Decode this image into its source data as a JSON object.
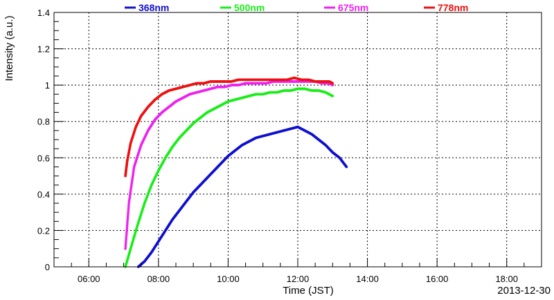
{
  "chart_data": {
    "type": "scatter",
    "title": "",
    "xlabel": "Time (JST)",
    "ylabel": "Intensity (a.u.)",
    "date_label": "2013-12-30",
    "xlim_hours": [
      5.0,
      19.0
    ],
    "ylim": [
      0,
      1.4
    ],
    "grid": true,
    "legend_position": "top",
    "x_ticks": [
      {
        "hour": 6,
        "label": "06:00"
      },
      {
        "hour": 8,
        "label": "08:00"
      },
      {
        "hour": 10,
        "label": "10:00"
      },
      {
        "hour": 12,
        "label": "12:00"
      },
      {
        "hour": 14,
        "label": "14:00"
      },
      {
        "hour": 16,
        "label": "16:00"
      },
      {
        "hour": 18,
        "label": "18:00"
      }
    ],
    "y_ticks": [
      {
        "value": 0,
        "label": "0"
      },
      {
        "value": 0.2,
        "label": "0.2"
      },
      {
        "value": 0.4,
        "label": "0.4"
      },
      {
        "value": 0.6,
        "label": "0.6"
      },
      {
        "value": 0.8,
        "label": "0.8"
      },
      {
        "value": 1.0,
        "label": "1"
      },
      {
        "value": 1.2,
        "label": "1.2"
      },
      {
        "value": 1.4,
        "label": "1.4"
      }
    ],
    "series": [
      {
        "name": "368nm",
        "color": "#1010d0",
        "x": [
          7.42,
          7.6,
          7.8,
          8.0,
          8.2,
          8.4,
          8.6,
          8.8,
          9.0,
          9.2,
          9.4,
          9.6,
          9.8,
          10.0,
          10.2,
          10.4,
          10.6,
          10.8,
          11.0,
          11.2,
          11.4,
          11.6,
          11.8,
          12.0,
          12.2,
          12.4,
          12.6,
          12.8,
          13.0,
          13.2,
          13.4
        ],
        "y": [
          0.0,
          0.03,
          0.08,
          0.14,
          0.2,
          0.26,
          0.31,
          0.36,
          0.41,
          0.45,
          0.49,
          0.53,
          0.57,
          0.61,
          0.64,
          0.67,
          0.69,
          0.71,
          0.72,
          0.73,
          0.74,
          0.75,
          0.76,
          0.77,
          0.75,
          0.73,
          0.7,
          0.67,
          0.63,
          0.6,
          0.55
        ]
      },
      {
        "name": "500nm",
        "color": "#18ee18",
        "x": [
          7.05,
          7.2,
          7.4,
          7.6,
          7.8,
          8.0,
          8.2,
          8.4,
          8.6,
          8.8,
          9.0,
          9.2,
          9.4,
          9.6,
          9.8,
          10.0,
          10.2,
          10.4,
          10.6,
          10.8,
          11.0,
          11.2,
          11.4,
          11.6,
          11.8,
          12.0,
          12.2,
          12.4,
          12.6,
          12.8,
          13.0
        ],
        "y": [
          0.0,
          0.1,
          0.23,
          0.35,
          0.45,
          0.53,
          0.6,
          0.66,
          0.71,
          0.75,
          0.79,
          0.82,
          0.85,
          0.87,
          0.89,
          0.91,
          0.92,
          0.93,
          0.94,
          0.95,
          0.95,
          0.96,
          0.96,
          0.97,
          0.97,
          0.98,
          0.98,
          0.97,
          0.97,
          0.96,
          0.94
        ]
      },
      {
        "name": "675nm",
        "color": "#ee22ee",
        "x": [
          7.05,
          7.15,
          7.3,
          7.5,
          7.7,
          7.9,
          8.1,
          8.3,
          8.5,
          8.7,
          8.9,
          9.1,
          9.3,
          9.5,
          9.7,
          9.9,
          10.1,
          10.3,
          10.5,
          10.7,
          10.9,
          11.1,
          11.3,
          11.5,
          11.7,
          11.9,
          12.1,
          12.3,
          12.5,
          12.7,
          12.9,
          13.0
        ],
        "y": [
          0.1,
          0.35,
          0.55,
          0.67,
          0.75,
          0.81,
          0.85,
          0.88,
          0.91,
          0.93,
          0.95,
          0.96,
          0.97,
          0.98,
          0.99,
          0.99,
          1.0,
          1.0,
          1.01,
          1.01,
          1.01,
          1.01,
          1.02,
          1.02,
          1.02,
          1.02,
          1.02,
          1.02,
          1.02,
          1.01,
          1.01,
          1.0
        ]
      },
      {
        "name": "778nm",
        "color": "#ee1010",
        "x": [
          7.05,
          7.1,
          7.2,
          7.35,
          7.5,
          7.7,
          7.9,
          8.1,
          8.3,
          8.5,
          8.7,
          8.9,
          9.1,
          9.3,
          9.5,
          9.7,
          9.9,
          10.1,
          10.3,
          10.5,
          10.7,
          10.9,
          11.1,
          11.3,
          11.5,
          11.7,
          11.9,
          12.1,
          12.3,
          12.5,
          12.7,
          12.9,
          13.0
        ],
        "y": [
          0.5,
          0.58,
          0.68,
          0.77,
          0.83,
          0.88,
          0.92,
          0.95,
          0.97,
          0.98,
          0.99,
          1.0,
          1.01,
          1.01,
          1.02,
          1.02,
          1.02,
          1.02,
          1.03,
          1.03,
          1.03,
          1.03,
          1.03,
          1.03,
          1.03,
          1.03,
          1.04,
          1.03,
          1.03,
          1.02,
          1.02,
          1.02,
          1.01
        ]
      }
    ]
  }
}
